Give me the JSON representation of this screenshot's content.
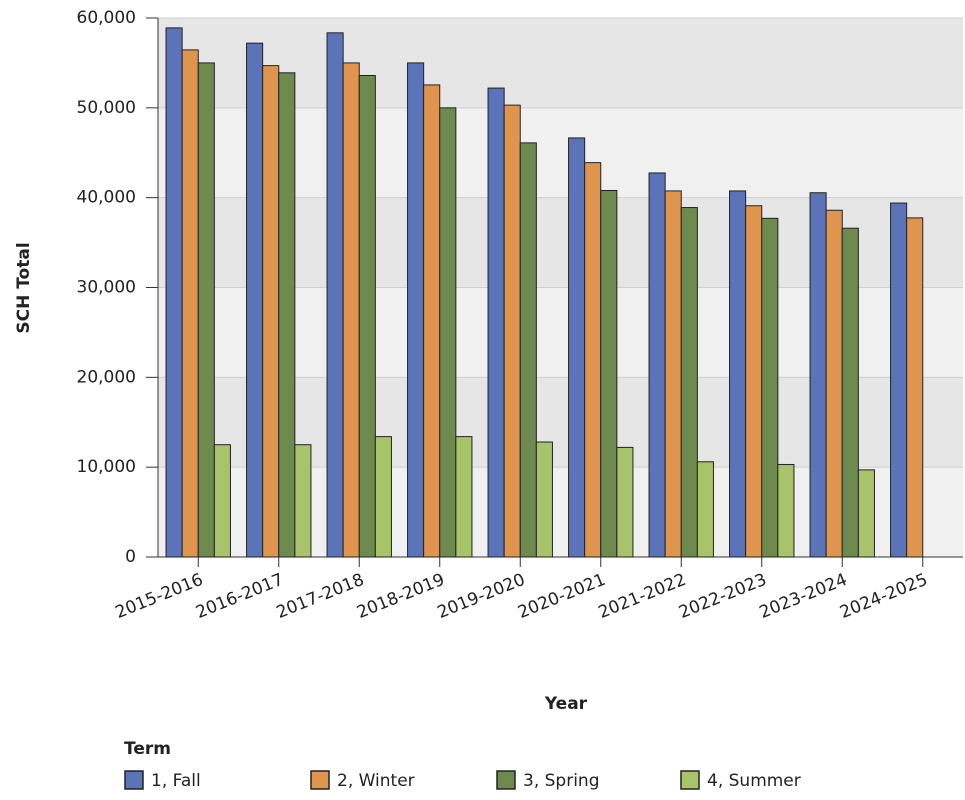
{
  "chart_data": {
    "type": "bar",
    "x_label": "Year",
    "y_label": "SCH Total",
    "legend_title": "Term",
    "categories": [
      "2015-2016",
      "2016-2017",
      "2017-2018",
      "2018-2019",
      "2019-2020",
      "2020-2021",
      "2021-2022",
      "2022-2023",
      "2023-2024",
      "2024-2025"
    ],
    "series": [
      {
        "name": "1, Fall",
        "color": "#5b73b8",
        "values": [
          58900,
          57200,
          58350,
          55000,
          52200,
          46650,
          42750,
          40750,
          40550,
          39400
        ]
      },
      {
        "name": "2, Winter",
        "color": "#e0954f",
        "values": [
          56450,
          54700,
          55000,
          52550,
          50300,
          43900,
          40750,
          39100,
          38600,
          37750
        ]
      },
      {
        "name": "3, Spring",
        "color": "#6e8a4e",
        "values": [
          55000,
          53900,
          53600,
          50000,
          46100,
          40800,
          38900,
          37700,
          36600,
          null
        ]
      },
      {
        "name": "4, Summer",
        "color": "#a8c46a",
        "values": [
          12500,
          12500,
          13400,
          13400,
          12800,
          12200,
          10600,
          10300,
          9700,
          null
        ]
      }
    ],
    "ylim": [
      0,
      60000
    ],
    "yticks": [
      0,
      {
        "value": 10000,
        "label": "10,000"
      },
      {
        "value": 20000,
        "label": "20,000"
      },
      {
        "value": 30000,
        "label": "30,000"
      },
      {
        "value": 40000,
        "label": "40,000"
      },
      {
        "value": 50000,
        "label": "50,000"
      },
      {
        "value": 60000,
        "label": "60,000"
      }
    ],
    "grid": true,
    "legend": "bottom"
  }
}
